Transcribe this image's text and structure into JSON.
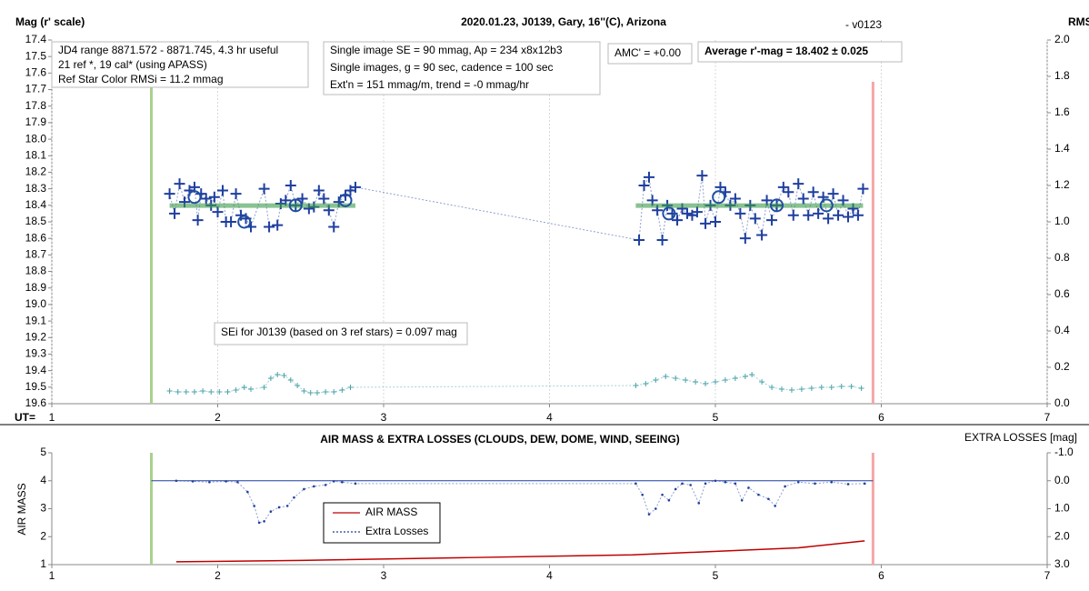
{
  "chart_data": [
    {
      "type": "scatter",
      "title": "2020.01.23, J0139, Gary, 16''(C), Arizona",
      "subtitle": "- v0123",
      "y_label": "Mag (r' scale)",
      "y2_label": "RMS i",
      "x_label": "UT=",
      "xlim": [
        1,
        7
      ],
      "xticks": [
        1,
        2,
        3,
        4,
        5,
        6,
        7
      ],
      "ylim": [
        19.6,
        17.4
      ],
      "yticks": [
        17.4,
        17.5,
        17.6,
        17.7,
        17.8,
        17.9,
        {
          "value": 18,
          "label": "18.0"
        },
        18.1,
        18.2,
        18.3,
        18.4,
        18.5,
        18.6,
        18.7,
        18.8,
        18.9,
        {
          "value": 19,
          "label": "19.0"
        },
        19.1,
        19.2,
        19.3,
        19.4,
        19.5,
        19.6
      ],
      "y2lim": [
        0,
        2
      ],
      "y2ticks": [
        {
          "value": 0,
          "label": "0.0"
        },
        0.2,
        0.4,
        0.6,
        0.8,
        {
          "value": 1,
          "label": "1.0"
        },
        1.2,
        1.4,
        1.6,
        1.8,
        {
          "value": 2,
          "label": "2.0"
        }
      ],
      "grid": true,
      "vlines": [
        {
          "x": 1.6,
          "color": "#a9d18e"
        },
        {
          "x": 5.95,
          "color": "#f4a6a6"
        }
      ],
      "annotations": [
        [
          "JD4 range 8871.572 - 8871.745, 4.3 hr useful",
          "21 ref *, 19 cal* (using APASS)",
          "Ref Star Color RMSi = 11.2 mmag"
        ],
        [
          "Single image SE = 90 mmag, Ap = 234 x8x12b3",
          "Single images, g = 90 sec, cadence = 100 sec",
          "Ext'n = 151 mmag/m, trend = -0 mmag/hr"
        ],
        [
          "AMC' = +0.00"
        ],
        [
          "Average r'-mag =  18.402 ± 0.025"
        ],
        [
          "SEi for J0139 (based on 3 ref stars) = 0.097 mag"
        ]
      ],
      "series": [
        {
          "color": "#1f3f9f",
          "marker": "plus",
          "line": "dotted",
          "x": [
            1.71,
            1.74,
            1.77,
            1.8,
            1.83,
            1.86,
            1.88,
            1.9,
            1.93,
            1.96,
            1.98,
            2.0,
            2.03,
            2.05,
            2.08,
            2.11,
            2.14,
            2.17,
            2.2,
            2.28,
            2.31,
            2.36,
            2.38,
            2.41,
            2.44,
            2.47,
            2.51,
            2.55,
            2.58,
            2.61,
            2.64,
            2.67,
            2.7,
            2.73,
            2.77,
            2.8,
            2.83,
            4.54,
            4.57,
            4.6,
            4.62,
            4.65,
            4.68,
            4.71,
            4.74,
            4.77,
            4.8,
            4.83,
            4.86,
            4.89,
            4.92,
            4.94,
            4.97,
            5.0,
            5.03,
            5.06,
            5.09,
            5.12,
            5.15,
            5.18,
            5.21,
            5.24,
            5.28,
            5.31,
            5.34,
            5.37,
            5.41,
            5.44,
            5.47,
            5.5,
            5.53,
            5.56,
            5.59,
            5.62,
            5.65,
            5.68,
            5.71,
            5.74,
            5.77,
            5.8,
            5.83,
            5.86,
            5.89
          ],
          "values": [
            18.33,
            18.45,
            18.27,
            18.38,
            18.31,
            18.29,
            18.49,
            18.33,
            18.36,
            18.4,
            18.35,
            18.44,
            18.31,
            18.5,
            18.5,
            18.33,
            18.46,
            18.48,
            18.53,
            18.3,
            18.53,
            18.52,
            18.39,
            18.37,
            18.28,
            18.4,
            18.36,
            18.42,
            18.41,
            18.31,
            18.36,
            18.43,
            18.53,
            18.38,
            18.34,
            18.31,
            18.29,
            18.61,
            18.28,
            18.23,
            18.37,
            18.43,
            18.61,
            18.4,
            18.45,
            18.49,
            18.42,
            18.45,
            18.46,
            18.44,
            18.22,
            18.51,
            18.4,
            18.5,
            18.29,
            18.32,
            18.4,
            18.36,
            18.45,
            18.6,
            18.4,
            18.48,
            18.58,
            18.37,
            18.49,
            18.4,
            18.29,
            18.32,
            18.46,
            18.27,
            18.36,
            18.46,
            18.32,
            18.45,
            18.35,
            18.48,
            18.33,
            18.46,
            18.37,
            18.47,
            18.42,
            18.46,
            18.3
          ]
        },
        {
          "color": "#3a9a4a",
          "marker": "none",
          "line": "thick",
          "x": [
            1.71,
            2.83
          ],
          "values": [
            18.402,
            18.402
          ]
        },
        {
          "color": "#3a9a4a",
          "marker": "none",
          "line": "thick",
          "x": [
            4.52,
            5.89
          ],
          "values": [
            18.402,
            18.402
          ]
        },
        {
          "color": "#1f4fa0",
          "marker": "circle",
          "line": "none",
          "x": [
            1.86,
            2.16,
            2.47,
            2.77,
            4.72,
            5.02,
            5.37,
            5.67
          ],
          "values": [
            18.35,
            18.5,
            18.4,
            18.37,
            18.45,
            18.35,
            18.4,
            18.4
          ]
        },
        {
          "color": "#4aa3a8",
          "marker": "small-plus",
          "line": "dotted",
          "axis": "y2",
          "x": [
            1.71,
            1.76,
            1.81,
            1.86,
            1.91,
            1.96,
            2.01,
            2.06,
            2.11,
            2.16,
            2.2,
            2.28,
            2.32,
            2.36,
            2.4,
            2.44,
            2.48,
            2.52,
            2.56,
            2.6,
            2.65,
            2.7,
            2.75,
            2.8,
            4.52,
            4.58,
            4.64,
            4.7,
            4.76,
            4.82,
            4.88,
            4.94,
            5.0,
            5.06,
            5.12,
            5.18,
            5.22,
            5.28,
            5.34,
            5.4,
            5.46,
            5.52,
            5.58,
            5.64,
            5.7,
            5.76,
            5.82,
            5.88
          ],
          "values": [
            0.07,
            0.065,
            0.065,
            0.065,
            0.07,
            0.065,
            0.065,
            0.065,
            0.075,
            0.09,
            0.08,
            0.09,
            0.14,
            0.16,
            0.155,
            0.13,
            0.1,
            0.07,
            0.06,
            0.06,
            0.065,
            0.065,
            0.075,
            0.09,
            0.1,
            0.11,
            0.13,
            0.15,
            0.14,
            0.13,
            0.12,
            0.11,
            0.12,
            0.13,
            0.14,
            0.15,
            0.16,
            0.12,
            0.09,
            0.08,
            0.075,
            0.08,
            0.085,
            0.09,
            0.09,
            0.095,
            0.095,
            0.085
          ]
        }
      ]
    },
    {
      "type": "line",
      "title": "AIR MASS & EXTRA LOSSES (CLOUDS, DEW, DOME, WIND, SEEING)",
      "y_label": "AIR MASS",
      "y2_label": "EXTRA LOSSES [mag]",
      "xlim": [
        1,
        7
      ],
      "xticks": [
        1,
        2,
        3,
        4,
        5,
        6,
        7
      ],
      "ylim": [
        1,
        5
      ],
      "yticks": [
        1,
        2,
        3,
        4,
        5
      ],
      "y2lim": [
        3,
        -1
      ],
      "y2ticks": [
        {
          "value": -1,
          "label": "-1.0"
        },
        {
          "value": 0,
          "label": "0.0"
        },
        {
          "value": 1,
          "label": "1.0"
        },
        {
          "value": 2,
          "label": "2.0"
        },
        {
          "value": 3,
          "label": "3.0"
        }
      ],
      "vlines": [
        {
          "x": 1.6,
          "color": "#a9d18e"
        },
        {
          "x": 5.95,
          "color": "#f4a6a6"
        }
      ],
      "hline_y2": {
        "value": 0,
        "color": "#1f3f9f"
      },
      "legend": "center-left",
      "series": [
        {
          "name": "AIR MASS",
          "color": "#c00000",
          "marker": "none",
          "line": "solid",
          "x": [
            1.75,
            2.5,
            3.5,
            4.5,
            5.5,
            5.9
          ],
          "values": [
            1.1,
            1.15,
            1.25,
            1.35,
            1.6,
            1.85
          ]
        },
        {
          "name": "Extra Losses",
          "color": "#1f3f9f",
          "marker": "dot",
          "line": "dotted",
          "axis": "y2",
          "x": [
            1.75,
            1.85,
            1.95,
            2.05,
            2.12,
            2.18,
            2.22,
            2.25,
            2.28,
            2.32,
            2.37,
            2.42,
            2.46,
            2.52,
            2.58,
            2.65,
            2.7,
            2.75,
            2.83,
            4.52,
            4.56,
            4.6,
            4.64,
            4.68,
            4.72,
            4.76,
            4.8,
            4.85,
            4.9,
            4.94,
            5.0,
            5.06,
            5.12,
            5.16,
            5.2,
            5.26,
            5.32,
            5.36,
            5.42,
            5.5,
            5.6,
            5.7,
            5.8,
            5.9
          ],
          "values": [
            0,
            0.02,
            0.05,
            0.02,
            0.05,
            0.4,
            0.9,
            1.5,
            1.45,
            1.1,
            0.95,
            0.9,
            0.6,
            0.3,
            0.2,
            0.15,
            0.02,
            0.05,
            0.1,
            0.1,
            0.5,
            1.2,
            1.0,
            0.5,
            0.7,
            0.3,
            0.1,
            0.15,
            0.8,
            0.1,
            0,
            0.05,
            0.1,
            0.7,
            0.25,
            0.5,
            0.65,
            0.9,
            0.2,
            0.05,
            0.1,
            0.05,
            0.12,
            0.1
          ]
        }
      ]
    }
  ]
}
